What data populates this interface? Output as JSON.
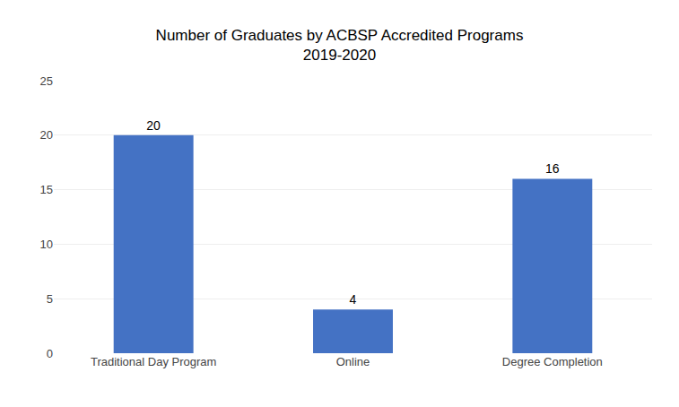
{
  "chart_data": {
    "type": "bar",
    "title": "Number of Graduates by ACBSP Accredited Programs",
    "subtitle": "2019-2020",
    "categories": [
      "Traditional Day Program",
      "Online",
      "Degree Completion"
    ],
    "values": [
      20,
      4,
      16
    ],
    "color": "#4472C4",
    "ylim": [
      0,
      25
    ],
    "yticks": [
      0,
      5,
      10,
      15,
      20,
      25
    ],
    "grid": true,
    "data_labels": true
  }
}
